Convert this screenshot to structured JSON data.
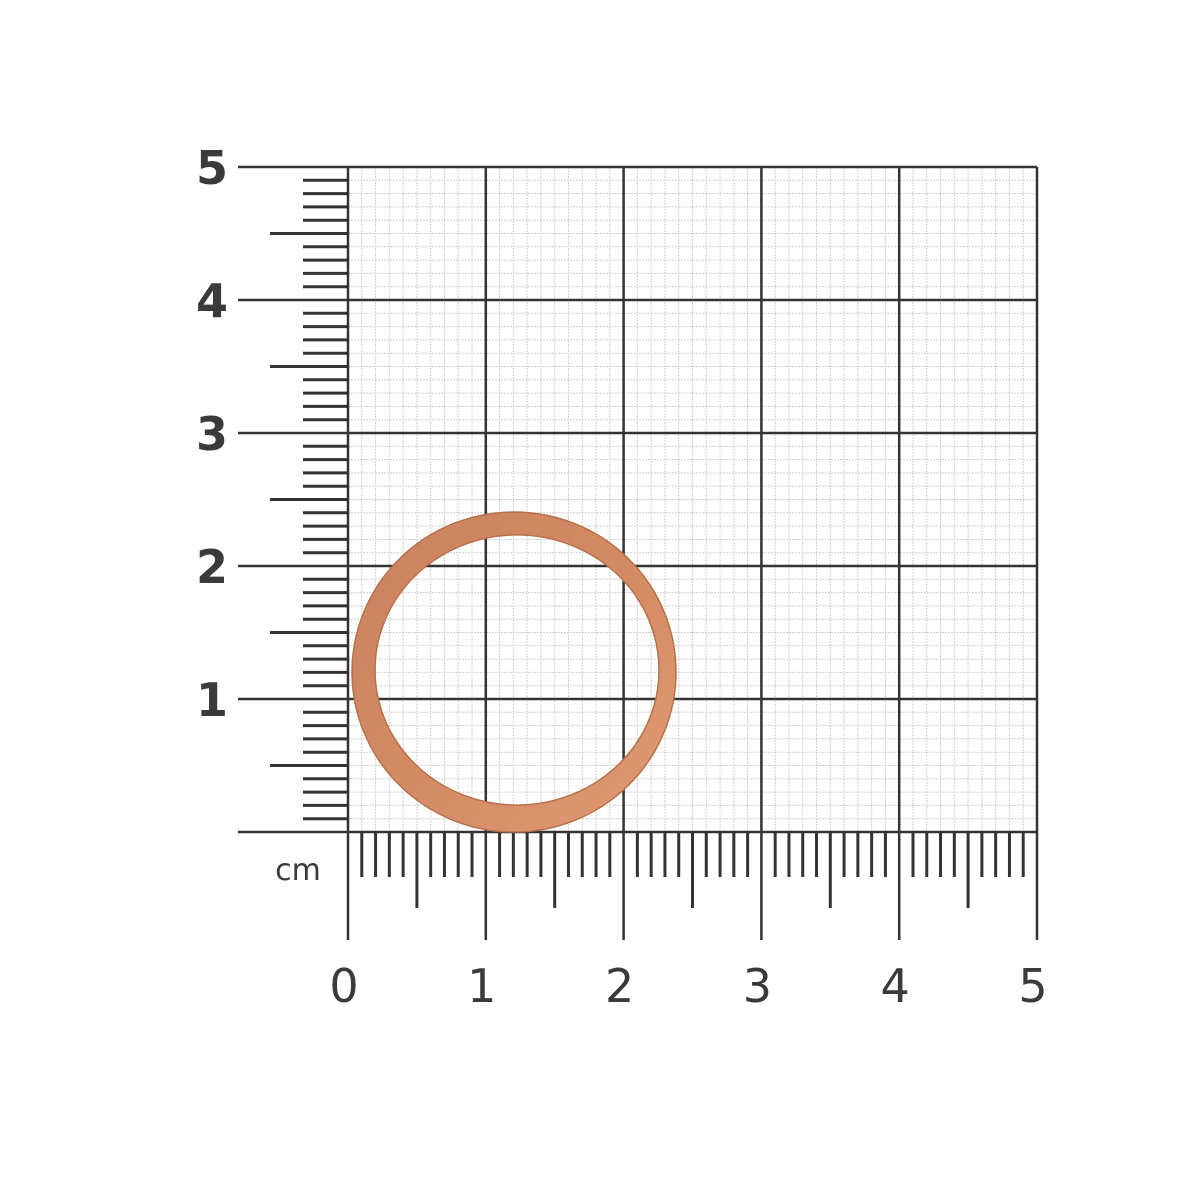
{
  "ruler": {
    "unit": "cm",
    "x_labels": [
      "0",
      "1",
      "2",
      "3",
      "4",
      "5"
    ],
    "y_labels": [
      "1",
      "2",
      "3",
      "4",
      "5"
    ],
    "range_cm": [
      0,
      5
    ],
    "line_color": "#333333",
    "minor_grid_color": "#cfcfcf"
  },
  "object": {
    "name": "copper sealing ring",
    "color": "#d48a63",
    "edge_color": "#b8714d"
  }
}
